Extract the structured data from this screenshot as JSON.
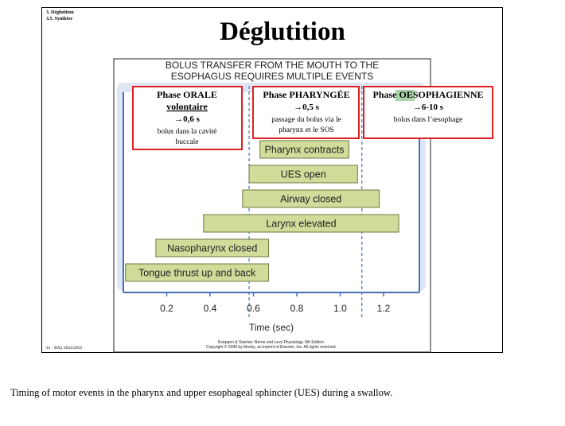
{
  "header": {
    "section_line1": "3. Déglutition",
    "section_line2": "3.5. Synthèse",
    "title": "Déglutition"
  },
  "figure": {
    "title_line1": "BOLUS TRANSFER FROM THE MOUTH TO THE",
    "title_line2": "ESOPHAGUS REQUIRES MULTIPLE EVENTS",
    "credit_line1": "Koeppen & Stanton: Berne and Levy Physiology, 6th Edition.",
    "credit_line2": "Copyright © 2008 by Mosby, an imprint of Elsevier, Inc. All rights reserved."
  },
  "phases": [
    {
      "title": "Phase ORALE",
      "subtitle": "volontaire",
      "duration": "→0,6 s",
      "desc_line1": "bolus dans la cavité",
      "desc_line2": "buccale"
    },
    {
      "title": "Phase PHARYNGÉE",
      "duration": "→0,5 s",
      "desc_line1": "passage du bolus via le",
      "desc_line2": "pharynx et le SOS"
    },
    {
      "title_prefix": "Phase ",
      "title_highlight": "OE",
      "title_suffix": "SOPHAGIENNE",
      "duration": "→6-10 s",
      "desc_line1": "bolus  dans l’œsophage"
    }
  ],
  "footer": {
    "page": "41 - BA2 2024/2025"
  },
  "caption": "Timing of motor events in the pharynx and upper esophageal sphincter (UES) during a swallow.",
  "colors": {
    "bar_fill": "#cfdc9a",
    "bar_stroke": "#6e7a40",
    "panel_fill": "#dfe6f3",
    "axis_blue": "#4a6fb8",
    "phase_border": "#e02020",
    "highlight": "#a9d3a8"
  },
  "chart_data": {
    "type": "bar",
    "orientation": "horizontal",
    "xlabel": "Time (sec)",
    "xticks": [
      "0.2",
      "0.4",
      "0.6",
      "0.8",
      "1.0",
      "1.2"
    ],
    "xlim": [
      0,
      1.38
    ],
    "phase_boundaries_sec": [
      0.58,
      1.1
    ],
    "bars": [
      {
        "label": "Pharynx contracts",
        "start": 0.63,
        "end": 1.04
      },
      {
        "label": "UES open",
        "start": 0.58,
        "end": 1.08
      },
      {
        "label": "Airway closed",
        "start": 0.55,
        "end": 1.18
      },
      {
        "label": "Larynx elevated",
        "start": 0.37,
        "end": 1.27
      },
      {
        "label": "Nasopharynx closed",
        "start": 0.15,
        "end": 0.67
      },
      {
        "label": "Tongue thrust up and back",
        "start": 0.01,
        "end": 0.67
      }
    ]
  }
}
